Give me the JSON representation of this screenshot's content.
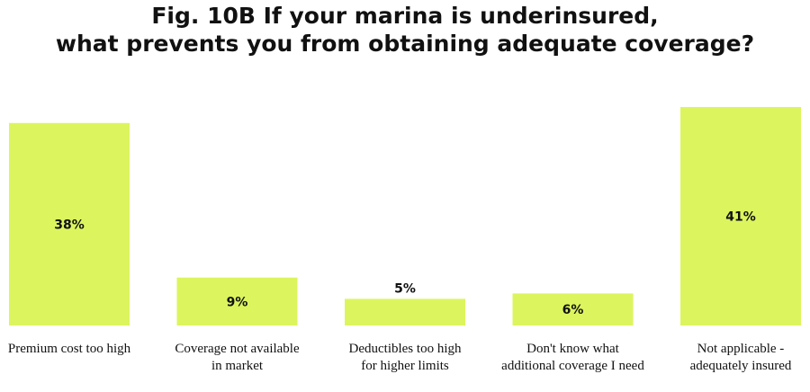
{
  "title_lines": [
    "Fig. 10B If your marina is underinsured,",
    "what prevents you from obtaining adequate coverage?"
  ],
  "colors": {
    "bar": "#DCF55E",
    "text": "#111111"
  },
  "chart_data": {
    "type": "bar",
    "title": "Fig. 10B If your marina is underinsured, what prevents you from obtaining adequate coverage?",
    "categories": [
      [
        "Premium cost too high"
      ],
      [
        "Coverage not available",
        "in market"
      ],
      [
        "Deductibles too high",
        "for higher limits"
      ],
      [
        "Don't know what",
        "additional coverage I need"
      ],
      [
        "Not applicable -",
        "adequately insured"
      ]
    ],
    "values": [
      38,
      9,
      5,
      6,
      41
    ],
    "value_labels": [
      "38%",
      "9%",
      "5%",
      "6%",
      "41%"
    ],
    "unit": "%",
    "ylim": [
      0,
      41
    ],
    "xlabel": "",
    "ylabel": "",
    "grid": false,
    "legend": "none"
  }
}
